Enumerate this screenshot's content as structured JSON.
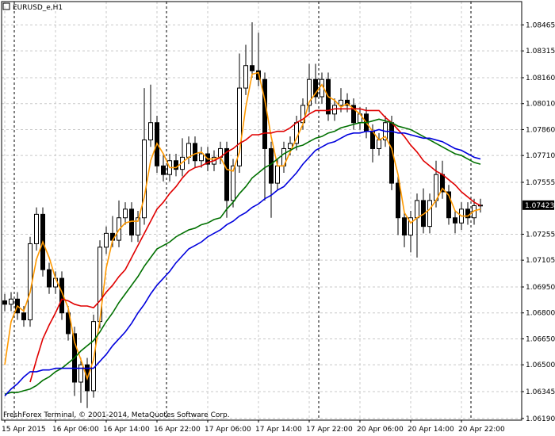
{
  "chart_data": {
    "type": "candlestick",
    "title": "EURUSD_e,H1",
    "footer": "FreshForex Terminal, © 2001-2014, MetaQuotes Software Corp.",
    "categories": [
      "15 Apr 2015",
      null,
      null,
      null,
      null,
      null,
      null,
      null,
      "16 Apr 06:00",
      null,
      null,
      null,
      null,
      null,
      null,
      null,
      "16 Apr 14:00",
      null,
      null,
      null,
      null,
      null,
      null,
      null,
      "16 Apr 22:00",
      null,
      null,
      null,
      null,
      null,
      null,
      null,
      "17 Apr 06:00",
      null,
      null,
      null,
      null,
      null,
      null,
      null,
      "17 Apr 14:00",
      null,
      null,
      null,
      null,
      null,
      null,
      null,
      "17 Apr 22:00",
      null,
      null,
      null,
      null,
      null,
      null,
      null,
      "20 Apr 06:00",
      null,
      null,
      null,
      null,
      null,
      null,
      null,
      "20 Apr 14:00",
      null,
      null,
      null,
      null,
      null,
      null,
      null,
      "20 Apr 22:00",
      null,
      null,
      null
    ],
    "open": [
      1.0687,
      1.0685,
      1.0688,
      1.068,
      1.0676,
      1.072,
      1.0737,
      1.0705,
      1.0695,
      1.07,
      1.068,
      1.0668,
      1.064,
      1.065,
      1.0635,
      1.0675,
      1.0718,
      1.0726,
      1.0722,
      1.0735,
      1.074,
      1.0725,
      1.0735,
      1.078,
      1.079,
      1.0765,
      1.076,
      1.0768,
      1.0763,
      1.077,
      1.0778,
      1.0768,
      1.0772,
      1.0766,
      1.077,
      1.0775,
      1.0745,
      1.0765,
      1.081,
      1.0823,
      1.082,
      1.0815,
      1.0775,
      1.0755,
      1.0765,
      1.0775,
      1.0778,
      1.079,
      1.08,
      1.0815,
      1.0805,
      1.0815,
      1.0795,
      1.08,
      1.0803,
      1.08,
      1.079,
      1.0795,
      1.0785,
      1.0775,
      1.078,
      1.079,
      1.0755,
      1.0735,
      1.0725,
      1.0735,
      1.0745,
      1.073,
      1.0745,
      1.076,
      1.075,
      1.0735,
      1.0732,
      1.074,
      1.0735,
      1.0742
    ],
    "high": [
      1.0691,
      1.0692,
      1.0692,
      1.0684,
      1.0724,
      1.0741,
      1.0741,
      1.0709,
      1.0704,
      1.0704,
      1.0684,
      1.0672,
      1.0654,
      1.0654,
      1.0679,
      1.0722,
      1.073,
      1.0736,
      1.0745,
      1.0744,
      1.0744,
      1.0739,
      1.081,
      1.0812,
      1.0794,
      1.0772,
      1.0772,
      1.0772,
      1.0781,
      1.0782,
      1.0782,
      1.0776,
      1.0776,
      1.0774,
      1.0779,
      1.0779,
      1.0769,
      1.083,
      1.0835,
      1.0848,
      1.0842,
      1.0819,
      1.0779,
      1.0769,
      1.0779,
      1.0782,
      1.0794,
      1.0804,
      1.0824,
      1.0824,
      1.0819,
      1.0819,
      1.0804,
      1.081,
      1.0807,
      1.0804,
      1.0799,
      1.0799,
      1.0789,
      1.0784,
      1.0794,
      1.0794,
      1.0759,
      1.0739,
      1.0739,
      1.0749,
      1.0752,
      1.0749,
      1.0768,
      1.0768,
      1.0754,
      1.0739,
      1.0744,
      1.0744,
      1.0746,
      1.0746
    ],
    "low": [
      1.0681,
      1.0681,
      1.0676,
      1.0672,
      1.0672,
      1.0716,
      1.0701,
      1.0691,
      1.0691,
      1.0676,
      1.0664,
      1.0632,
      1.0628,
      1.0625,
      1.0631,
      1.0671,
      1.0714,
      1.0718,
      1.0718,
      1.0731,
      1.0721,
      1.0721,
      1.0731,
      1.0776,
      1.0761,
      1.0756,
      1.0756,
      1.0759,
      1.0759,
      1.0766,
      1.0764,
      1.0764,
      1.0762,
      1.0762,
      1.0766,
      1.0735,
      1.0741,
      1.0761,
      1.0806,
      1.0816,
      1.0811,
      1.0745,
      1.0735,
      1.0751,
      1.0761,
      1.0771,
      1.0774,
      1.0786,
      1.0796,
      1.0801,
      1.0801,
      1.0791,
      1.0791,
      1.0796,
      1.0796,
      1.0786,
      1.0786,
      1.0781,
      1.0767,
      1.0771,
      1.0776,
      1.0751,
      1.0725,
      1.0718,
      1.0715,
      1.0712,
      1.0726,
      1.0726,
      1.0741,
      1.0746,
      1.0731,
      1.0726,
      1.0728,
      1.0731,
      1.0731,
      1.0738
    ],
    "close": [
      1.0685,
      1.0688,
      1.068,
      1.0676,
      1.072,
      1.0737,
      1.0705,
      1.0695,
      1.07,
      1.068,
      1.0668,
      1.064,
      1.065,
      1.0635,
      1.0675,
      1.0718,
      1.0726,
      1.0722,
      1.0735,
      1.074,
      1.0725,
      1.0735,
      1.078,
      1.079,
      1.0765,
      1.076,
      1.0768,
      1.0763,
      1.077,
      1.0778,
      1.0768,
      1.0772,
      1.0766,
      1.077,
      1.0775,
      1.0745,
      1.0765,
      1.081,
      1.0823,
      1.082,
      1.0815,
      1.0775,
      1.0755,
      1.0765,
      1.0775,
      1.0778,
      1.079,
      1.08,
      1.0815,
      1.0805,
      1.0815,
      1.0795,
      1.08,
      1.0803,
      1.08,
      1.079,
      1.0795,
      1.0785,
      1.0775,
      1.078,
      1.079,
      1.0755,
      1.0735,
      1.0725,
      1.0735,
      1.0745,
      1.073,
      1.0745,
      1.076,
      1.075,
      1.0735,
      1.0732,
      1.074,
      1.0735,
      1.0742,
      1.07423
    ],
    "up_color": "#ffffff",
    "down_color": "#000000",
    "series": [
      {
        "color": "#ff9900",
        "values": [
          1.065,
          1.0675,
          1.0684,
          1.0681,
          1.0692,
          1.0711,
          1.0721,
          1.0712,
          1.07,
          1.0692,
          1.0683,
          1.0663,
          1.0653,
          1.0642,
          1.0653,
          1.0676,
          1.0706,
          1.0722,
          1.0728,
          1.0732,
          1.0733,
          1.0733,
          1.0747,
          1.0768,
          1.0778,
          1.0772,
          1.0764,
          1.0764,
          1.0767,
          1.077,
          1.0772,
          1.0773,
          1.0769,
          1.0769,
          1.077,
          1.0763,
          1.0762,
          1.0773,
          1.0799,
          1.0818,
          1.0819,
          1.0803,
          1.0782,
          1.0765,
          1.0765,
          1.0773,
          1.0781,
          1.0789,
          1.0802,
          1.0807,
          1.0812,
          1.0805,
          1.0803,
          1.0799,
          1.0801,
          1.0798,
          1.0795,
          1.079,
          1.0785,
          1.078,
          1.0782,
          1.0775,
          1.076,
          1.0738,
          1.0732,
          1.0735,
          1.0737,
          1.074,
          1.0745,
          1.0752,
          1.0748,
          1.0739,
          1.0736,
          1.0736,
          1.0739,
          1.074
        ]
      },
      {
        "color": "#e00000",
        "values": [
          null,
          null,
          null,
          null,
          1.064,
          1.0653,
          1.0665,
          1.0673,
          1.068,
          1.0688,
          1.0687,
          1.0685,
          1.0684,
          1.0684,
          1.0683,
          1.0687,
          1.0692,
          1.0696,
          1.0701,
          1.0705,
          1.0712,
          1.0719,
          1.0726,
          1.0733,
          1.074,
          1.0744,
          1.0749,
          1.0753,
          1.0758,
          1.0762,
          1.0764,
          1.0765,
          1.0767,
          1.0768,
          1.077,
          1.0773,
          1.0775,
          1.0778,
          1.078,
          1.0783,
          1.0783,
          1.0784,
          1.0784,
          1.0785,
          1.0785,
          1.0787,
          1.079,
          1.0792,
          1.0795,
          1.0797,
          1.0797,
          1.0797,
          1.0798,
          1.0798,
          1.0798,
          1.0798,
          1.0798,
          1.0797,
          1.0797,
          1.0797,
          1.0793,
          1.079,
          1.0786,
          1.0782,
          1.0777,
          1.0773,
          1.0768,
          1.0765,
          1.0762,
          1.076,
          1.0757,
          1.0754,
          1.075,
          1.0747,
          1.0744,
          1.0742
        ]
      },
      {
        "color": "#007000",
        "values": [
          1.0633,
          1.0634,
          1.0634,
          1.0635,
          1.0636,
          1.0638,
          1.0641,
          1.0643,
          1.0646,
          1.0648,
          1.0651,
          1.0654,
          1.0658,
          1.0661,
          1.0664,
          1.0669,
          1.0675,
          1.068,
          1.0686,
          1.0691,
          1.0696,
          1.0701,
          1.0707,
          1.0712,
          1.0717,
          1.0719,
          1.0721,
          1.0724,
          1.0726,
          1.0728,
          1.0729,
          1.0731,
          1.0732,
          1.0734,
          1.0735,
          1.074,
          1.0744,
          1.0749,
          1.0753,
          1.0758,
          1.0761,
          1.0764,
          1.0766,
          1.0769,
          1.0772,
          1.0774,
          1.0776,
          1.0777,
          1.0779,
          1.0781,
          1.0782,
          1.0784,
          1.0785,
          1.0787,
          1.0788,
          1.0789,
          1.079,
          1.079,
          1.0791,
          1.0792,
          1.0791,
          1.079,
          1.0788,
          1.0787,
          1.0786,
          1.0784,
          1.0782,
          1.078,
          1.0778,
          1.0776,
          1.0774,
          1.0772,
          1.0771,
          1.0769,
          1.0767,
          1.0766
        ]
      },
      {
        "color": "#0000dd",
        "values": [
          1.0632,
          1.0636,
          1.0639,
          1.0643,
          1.0646,
          1.0646,
          1.0647,
          1.0647,
          1.0648,
          1.0648,
          1.0648,
          1.0648,
          1.0648,
          1.0648,
          1.0648,
          1.0652,
          1.0656,
          1.0661,
          1.0665,
          1.0669,
          1.0674,
          1.068,
          1.0685,
          1.0691,
          1.0696,
          1.07,
          1.0704,
          1.0709,
          1.0713,
          1.0717,
          1.0719,
          1.0721,
          1.0724,
          1.0726,
          1.0728,
          1.0731,
          1.0733,
          1.0736,
          1.0738,
          1.0741,
          1.0743,
          1.0746,
          1.0748,
          1.0751,
          1.0753,
          1.0757,
          1.0761,
          1.0766,
          1.077,
          1.0774,
          1.0776,
          1.0778,
          1.0779,
          1.0781,
          1.0783,
          1.0784,
          1.0784,
          1.0785,
          1.0785,
          1.0786,
          1.0785,
          1.0785,
          1.0784,
          1.0784,
          1.0783,
          1.0782,
          1.0781,
          1.0781,
          1.078,
          1.0779,
          1.0777,
          1.0775,
          1.0774,
          1.0772,
          1.077,
          1.0769
        ]
      }
    ],
    "current_price": 1.07423,
    "ylim": [
      1.0618,
      1.086
    ],
    "yticks": [
      1.08465,
      1.08315,
      {
        "value": 1.0816,
        "label": "1.08160"
      },
      {
        "value": 1.0801,
        "label": "1.08010"
      },
      {
        "value": 1.0786,
        "label": "1.07860"
      },
      {
        "value": 1.0771,
        "label": "1.07710"
      },
      1.07555,
      1.07255,
      1.07105,
      {
        "value": 1.0695,
        "label": "1.06950"
      },
      {
        "value": 1.068,
        "label": "1.06800"
      },
      {
        "value": 1.0665,
        "label": "1.06650"
      },
      {
        "value": 1.065,
        "label": "1.06500"
      },
      1.06345,
      {
        "value": 1.0619,
        "label": "1.06190"
      }
    ],
    "grid": true
  }
}
